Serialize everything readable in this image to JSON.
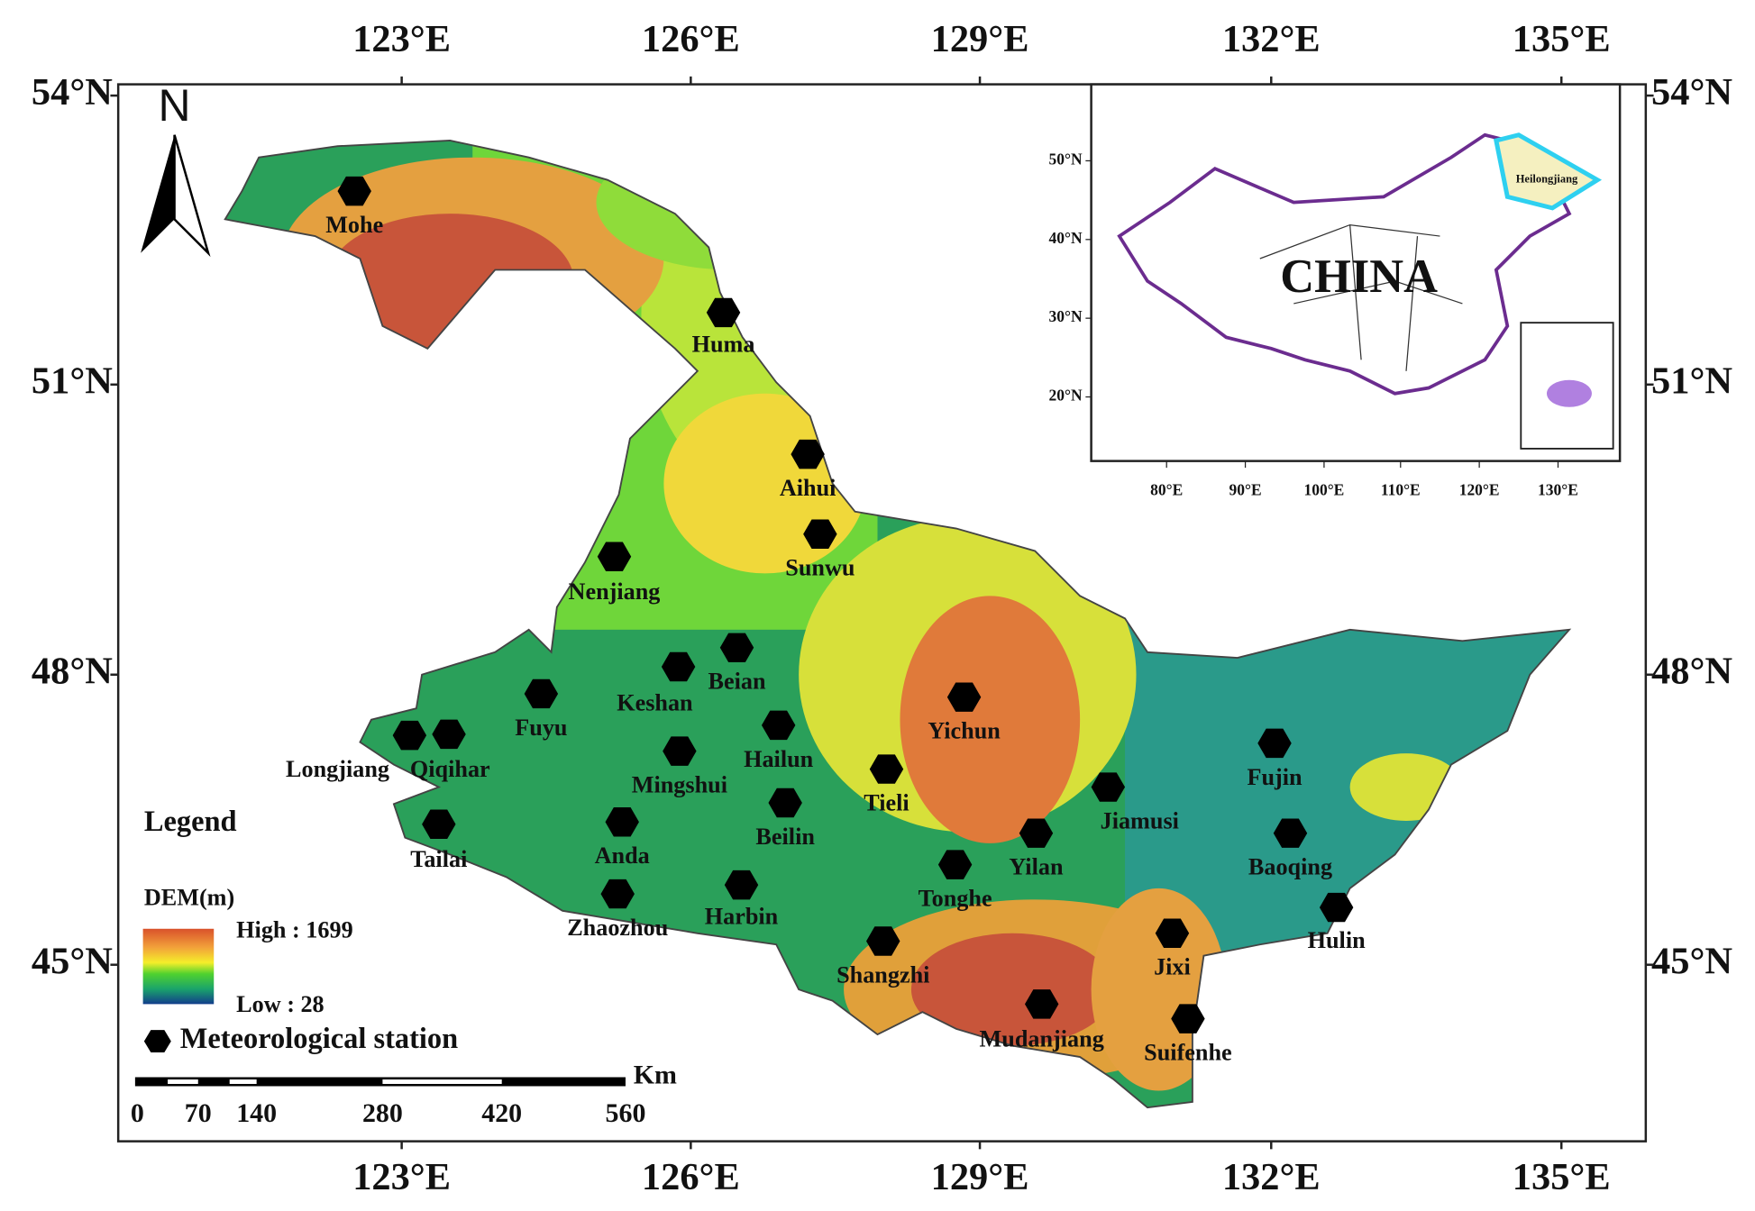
{
  "north_label": "N",
  "axes": {
    "top": [
      "123°E",
      "126°E",
      "129°E",
      "132°E",
      "135°E"
    ],
    "bottom": [
      "123°E",
      "126°E",
      "129°E",
      "132°E",
      "135°E"
    ],
    "left": [
      "54°N",
      "51°N",
      "48°N",
      "45°N"
    ],
    "right": [
      "54°N",
      "51°N",
      "48°N",
      "45°N"
    ]
  },
  "stations": [
    "Mohe",
    "Huma",
    "Aihui",
    "Sunwu",
    "Nenjiang",
    "Beian",
    "Keshan",
    "Fuyu",
    "Hailun",
    "Yichun",
    "Longjiang",
    "Qiqihar",
    "Mingshui",
    "Tieli",
    "Jiamusi",
    "Fujin",
    "Beilin",
    "Tailai",
    "Anda",
    "Yilan",
    "Baoqing",
    "Tonghe",
    "Harbin",
    "Zhaozhou",
    "Hulin",
    "Shangzhi",
    "Jixi",
    "Mudanjiang",
    "Suifenhe"
  ],
  "legend": {
    "title": "Legend",
    "dem_label": "DEM(m)",
    "high": "High : 1699",
    "low": "Low : 28",
    "station": "Meteorological station"
  },
  "scale_bar": {
    "unit": "Km",
    "labels": [
      "0",
      "70",
      "140",
      "280",
      "420",
      "560"
    ]
  },
  "inset": {
    "country": "CHINA",
    "province": "Heilongjiang",
    "lat_labels": [
      "50°N",
      "40°N",
      "30°N",
      "20°N"
    ],
    "lon_labels": [
      "80°E",
      "90°E",
      "100°E",
      "110°E",
      "120°E",
      "130°E"
    ]
  }
}
